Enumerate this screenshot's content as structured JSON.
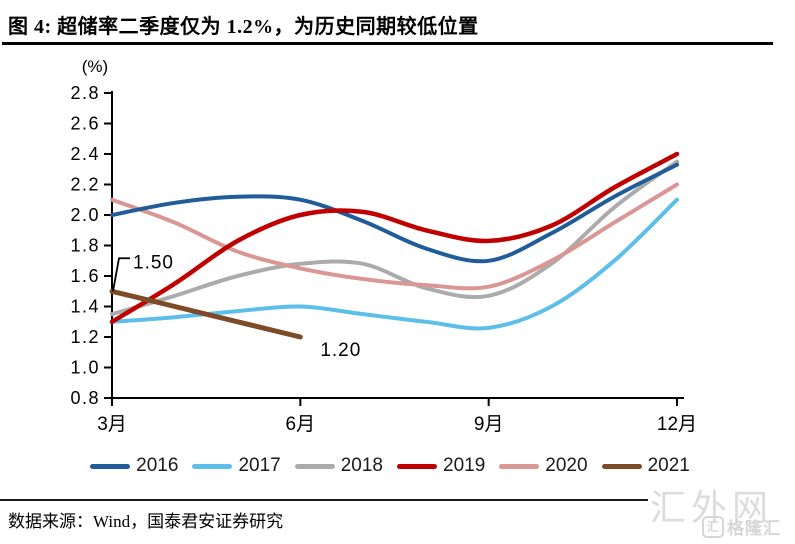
{
  "page": {
    "title": "图 4: 超储率二季度仅为 1.2%，为历史同期较低位置",
    "source": "数据来源：Wind，国泰君安证券研究",
    "watermark": {
      "site_text": "汇外网",
      "logo_text": "格隆汇"
    }
  },
  "chart_data": {
    "type": "line",
    "title": "超储率二季度仅为1.2%，为历史同期较低位置",
    "unit_label": "(%)",
    "ylim": [
      0.8,
      2.8
    ],
    "y_tick_step": 0.2,
    "y_tick_labels": [
      "0.8",
      "1.0",
      "1.2",
      "1.4",
      "1.6",
      "1.8",
      "2.0",
      "2.2",
      "2.4",
      "2.6",
      "2.8"
    ],
    "x_tick_labels": [
      "3月",
      "6月",
      "9月",
      "12月"
    ],
    "x_tick_months": [
      3,
      6,
      9,
      12
    ],
    "x_range_months": [
      3,
      12
    ],
    "grid": false,
    "legend_position": "bottom",
    "axis_color": "#000000",
    "series": [
      {
        "name": "2016",
        "color": "#1F5C99",
        "stroke_width": 4,
        "months": [
          3,
          4,
          5,
          6,
          7,
          8,
          9,
          10,
          11,
          12
        ],
        "values": [
          2.0,
          2.08,
          2.12,
          2.1,
          1.96,
          1.78,
          1.7,
          1.88,
          2.12,
          2.33
        ]
      },
      {
        "name": "2017",
        "color": "#5BBFEA",
        "stroke_width": 4,
        "months": [
          3,
          4,
          5,
          6,
          7,
          8,
          9,
          10,
          11,
          12
        ],
        "values": [
          1.3,
          1.33,
          1.37,
          1.4,
          1.35,
          1.3,
          1.26,
          1.4,
          1.7,
          2.1
        ]
      },
      {
        "name": "2018",
        "color": "#ABABAB",
        "stroke_width": 4,
        "months": [
          3,
          4,
          5,
          6,
          7,
          8,
          9,
          10,
          11,
          12
        ],
        "values": [
          1.35,
          1.47,
          1.6,
          1.68,
          1.68,
          1.52,
          1.47,
          1.68,
          2.05,
          2.35
        ]
      },
      {
        "name": "2019",
        "color": "#C00000",
        "stroke_width": 4.5,
        "months": [
          3,
          4,
          5,
          6,
          7,
          8,
          9,
          10,
          11,
          12
        ],
        "values": [
          1.3,
          1.55,
          1.83,
          2.0,
          2.02,
          1.9,
          1.83,
          1.93,
          2.18,
          2.4
        ]
      },
      {
        "name": "2020",
        "color": "#D99694",
        "stroke_width": 4,
        "months": [
          3,
          4,
          5,
          6,
          7,
          8,
          9,
          10,
          11,
          12
        ],
        "values": [
          2.1,
          1.95,
          1.76,
          1.65,
          1.58,
          1.54,
          1.53,
          1.7,
          1.95,
          2.2
        ]
      },
      {
        "name": "2021",
        "color": "#7D4B27",
        "stroke_width": 5,
        "months": [
          3,
          4,
          5,
          6
        ],
        "values": [
          1.5,
          1.4,
          1.3,
          1.2
        ]
      }
    ],
    "annotations": [
      {
        "text": "1.50",
        "series": "2021",
        "month": 3,
        "value": 1.5,
        "leader": true
      },
      {
        "text": "1.20",
        "series": "2021",
        "month": 6,
        "value": 1.2,
        "leader": false
      }
    ]
  }
}
